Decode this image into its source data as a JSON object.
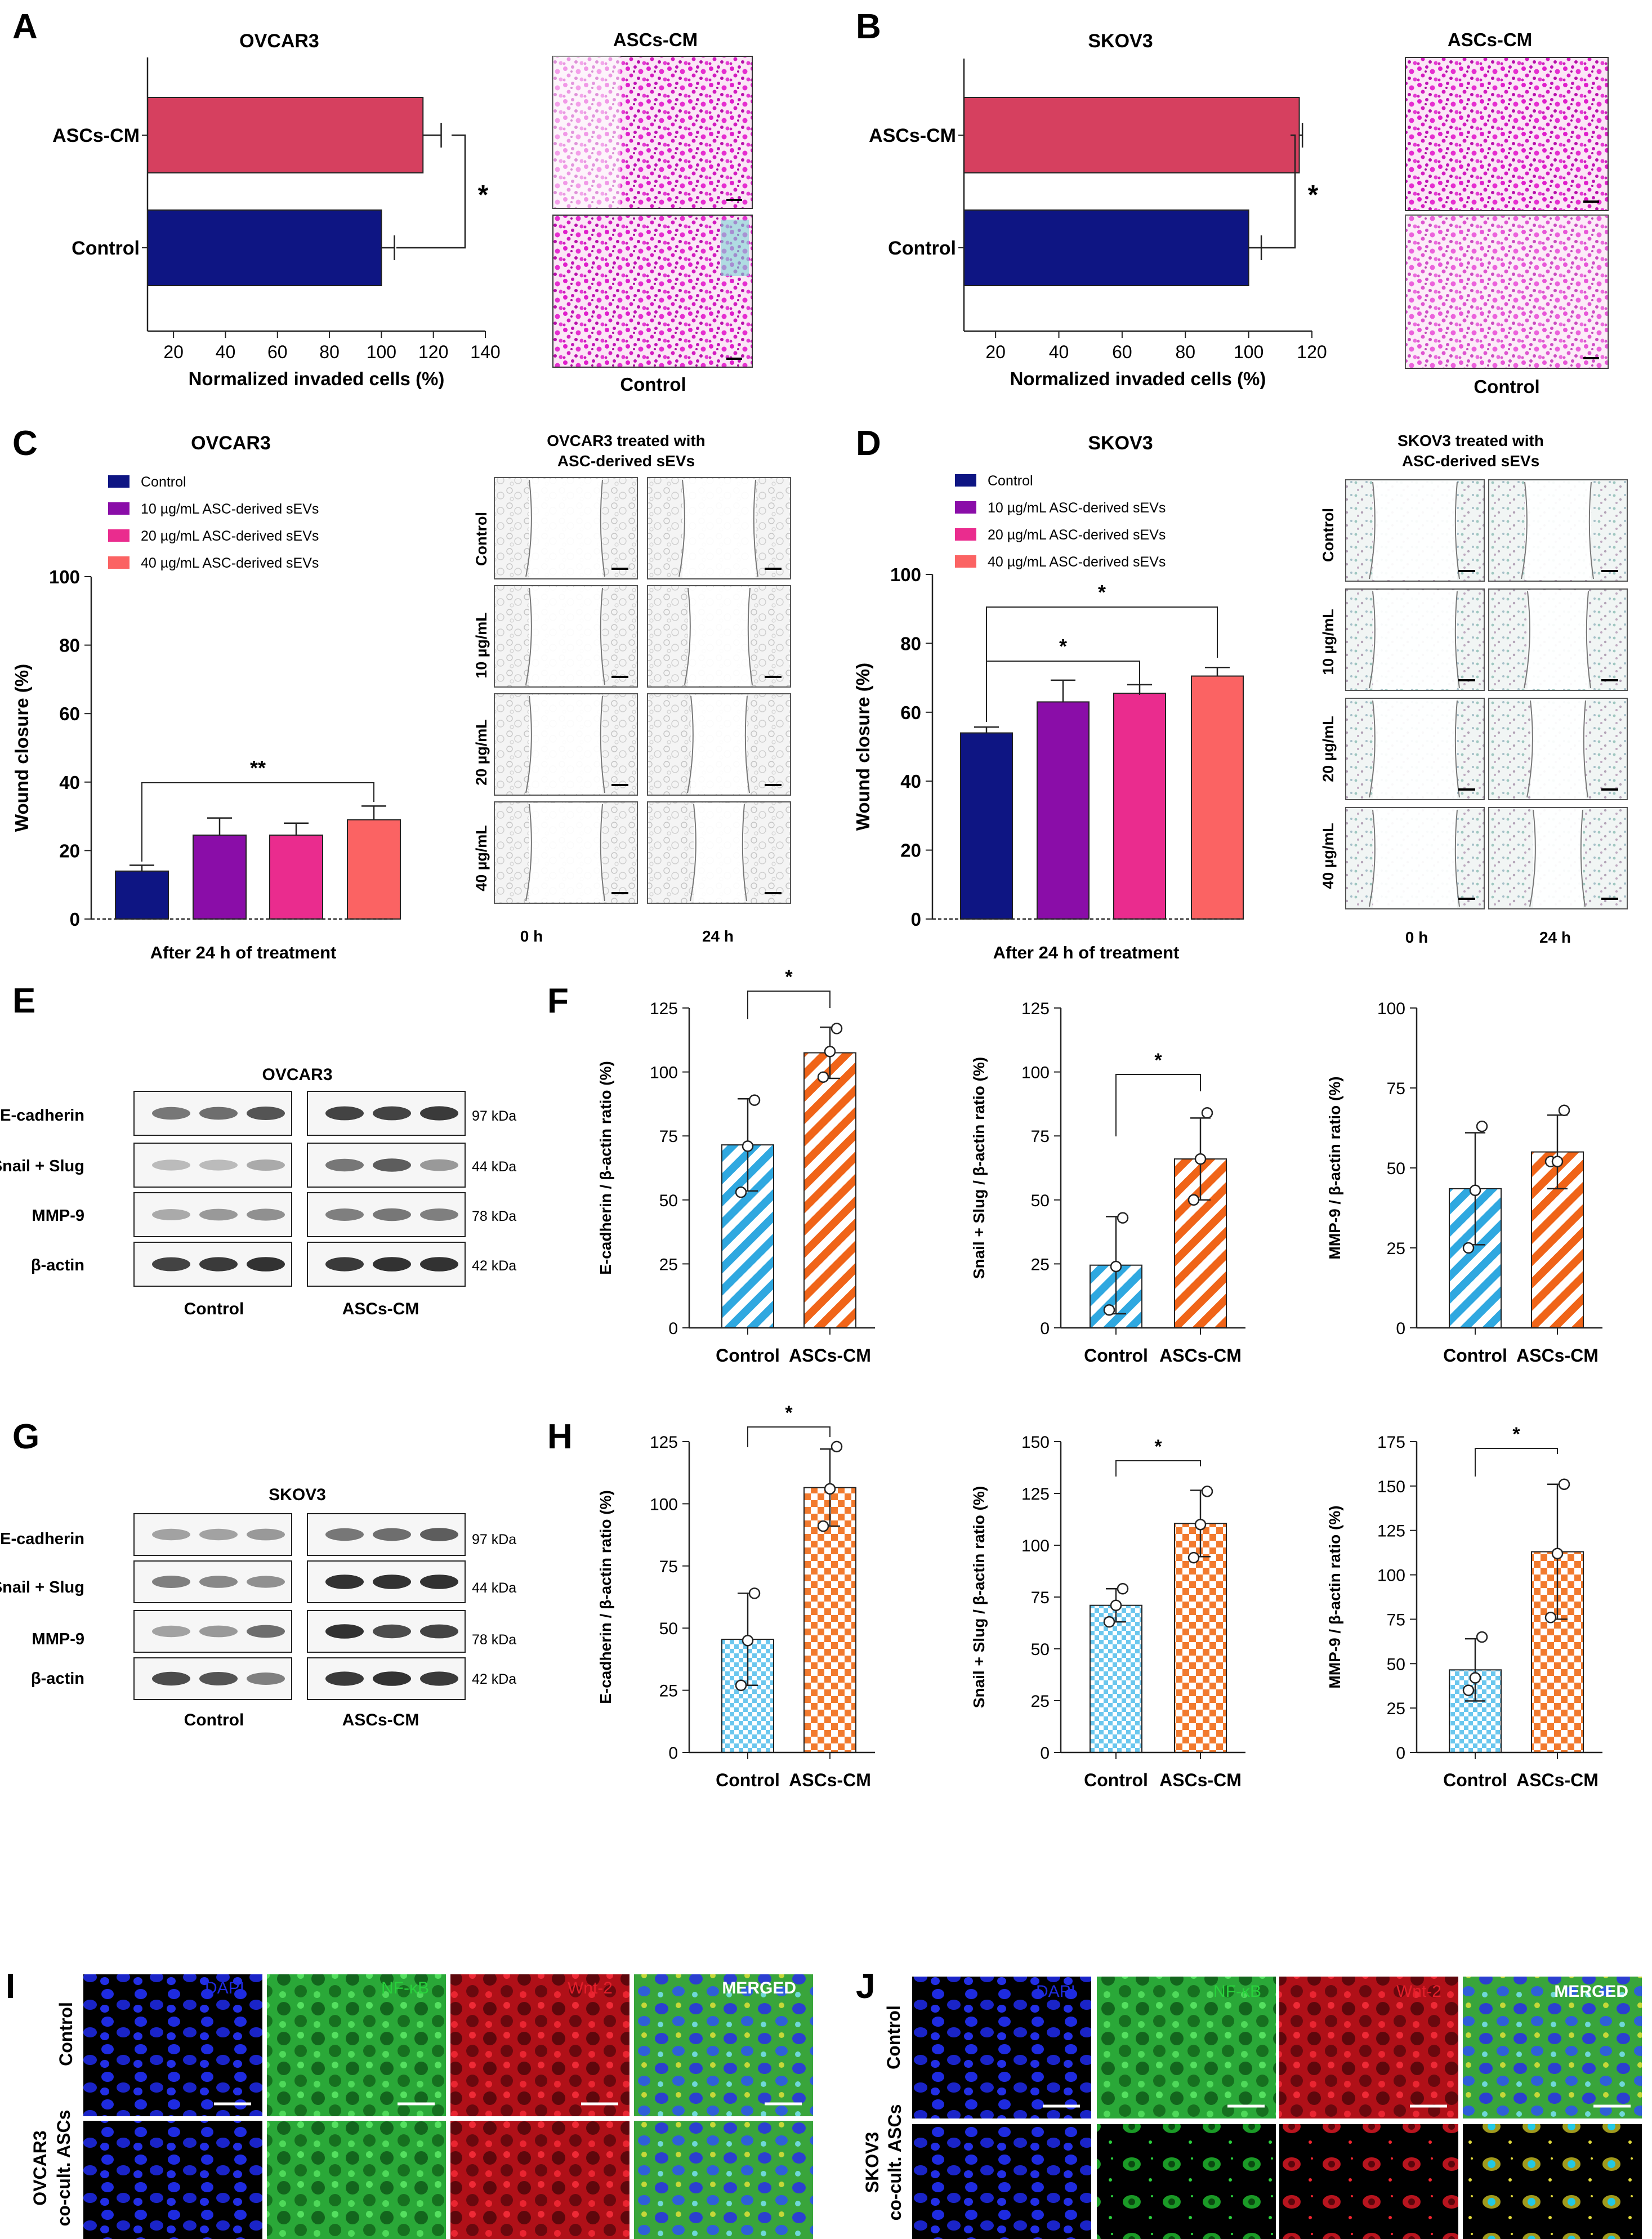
{
  "colors": {
    "control_navy": "#0E1583",
    "ascs_red": "#D6405F",
    "purple": "#8A0DA8",
    "pink": "#EA2C8E",
    "salmon": "#FB6363",
    "hatch_blue": "#2FA8E0",
    "hatch_orange": "#F06418",
    "checker_blue": "#6BC7EE",
    "checker_orange": "#F27A2E",
    "dapi": "#1E2BE0",
    "nfkb": "#28D23C",
    "wnt2": "#E51E2A"
  },
  "panels": {
    "A": "A",
    "B": "B",
    "C": "C",
    "D": "D",
    "E": "E",
    "F": "F",
    "G": "G",
    "H": "H",
    "I": "I",
    "J": "J"
  },
  "micro": {
    "A": {
      "title": "ASCs-CM",
      "bottom_label": "Control"
    },
    "B": {
      "title": "ASCs-CM",
      "bottom_label": "Control"
    },
    "C": {
      "title_line1": "OVCAR3 treated with",
      "title_line2": "ASC-derived sEVs",
      "rows": [
        "Control",
        "10 µg/mL",
        "20 µg/mL",
        "40 µg/mL"
      ],
      "cols": [
        "0 h",
        "24 h"
      ]
    },
    "D": {
      "title_line1": "SKOV3 treated with",
      "title_line2": "ASC-derived sEVs",
      "rows": [
        "Control",
        "10 µg/mL",
        "20 µg/mL",
        "40 µg/mL"
      ],
      "cols": [
        "0 h",
        "24 h"
      ]
    }
  },
  "blots": {
    "E": {
      "title": "OVCAR3",
      "rows": [
        "E-cadherin",
        "Snail + Slug",
        "MMP-9",
        "β-actin"
      ],
      "kda": [
        "97 kDa",
        "44 kDa",
        "78 kDa",
        "42 kDa"
      ],
      "groups": [
        "Control",
        "ASCs-CM"
      ]
    },
    "G": {
      "title": "SKOV3",
      "rows": [
        "E-cadherin",
        "Snail + Slug",
        "MMP-9",
        "β-actin"
      ],
      "kda": [
        "97 kDa",
        "44 kDa",
        "78 kDa",
        "42 kDa"
      ],
      "groups": [
        "Control",
        "ASCs-CM"
      ]
    }
  },
  "if": {
    "I": {
      "channels": [
        "DAPI",
        "NF-κB",
        "Wnt-2",
        "MERGED"
      ],
      "row1": "Control",
      "row2_line1": "OVCAR3",
      "row2_line2": "co-cult. ASCs"
    },
    "J": {
      "channels": [
        "DAPI",
        "NF-κB",
        "Wnt-2",
        "MERGED"
      ],
      "row1": "Control",
      "row2_line1": "SKOV3",
      "row2_line2": "co-cult. ASCs"
    }
  },
  "chart_data": [
    {
      "id": "A",
      "type": "bar",
      "orientation": "horizontal",
      "title": "OVCAR3",
      "categories": [
        "ASCs-CM",
        "Control"
      ],
      "values": [
        116,
        100
      ],
      "errors": [
        7,
        5
      ],
      "xlabel": "Normalized invaded cells (%)",
      "xlim": [
        10,
        140
      ],
      "xticks": [
        20,
        40,
        60,
        80,
        100,
        120,
        140
      ],
      "significance": "*"
    },
    {
      "id": "B",
      "type": "bar",
      "orientation": "horizontal",
      "title": "SKOV3",
      "categories": [
        "ASCs-CM",
        "Control"
      ],
      "values": [
        116,
        100
      ],
      "errors": [
        1,
        4
      ],
      "xlabel": "Normalized invaded cells (%)",
      "xlim": [
        10,
        120
      ],
      "xticks": [
        20,
        40,
        60,
        80,
        100,
        120
      ],
      "significance": "*"
    },
    {
      "id": "C",
      "type": "bar",
      "title": "OVCAR3",
      "categories": [
        "Control",
        "10 µg/mL ASC-derived sEVs",
        "20 µg/mL ASC-derived sEVs",
        "40 µg/mL ASC-derived sEVs"
      ],
      "values": [
        14,
        24.5,
        24.5,
        29
      ],
      "errors": [
        1.7,
        5,
        3.5,
        4
      ],
      "ylabel": "Wound closure (%)",
      "xlabel": "After 24 h of treatment",
      "ylim": [
        0,
        100
      ],
      "yticks": [
        0,
        20,
        40,
        60,
        80,
        100
      ],
      "legend": "top-left",
      "significance": [
        {
          "from": 0,
          "to": 3,
          "label": "**"
        }
      ]
    },
    {
      "id": "D",
      "type": "bar",
      "title": "SKOV3",
      "categories": [
        "Control",
        "10 µg/mL ASC-derived sEVs",
        "20 µg/mL ASC-derived sEVs",
        "40 µg/mL ASC-derived sEVs"
      ],
      "values": [
        54,
        63,
        65.5,
        70.5
      ],
      "errors": [
        1.7,
        6.3,
        2.5,
        2.5
      ],
      "ylabel": "Wound closure (%)",
      "xlabel": "After 24 h of treatment",
      "ylim": [
        0,
        100
      ],
      "yticks": [
        0,
        20,
        40,
        60,
        80,
        100
      ],
      "legend": "top-left",
      "significance": [
        {
          "from": 0,
          "to": 2,
          "label": "*"
        },
        {
          "from": 0,
          "to": 3,
          "label": "*"
        }
      ]
    },
    {
      "id": "F1",
      "type": "bar",
      "categories": [
        "Control",
        "ASCs-CM"
      ],
      "values": [
        71.5,
        107.5
      ],
      "errors": [
        18,
        10
      ],
      "points": [
        [
          53,
          71,
          89
        ],
        [
          98,
          108,
          117
        ]
      ],
      "ylabel": "E-cadherin / β-actin ratio (%)",
      "ylim": [
        0,
        125
      ],
      "yticks": [
        0,
        25,
        50,
        75,
        100,
        125
      ],
      "significance": "*"
    },
    {
      "id": "F2",
      "type": "bar",
      "categories": [
        "Control",
        "ASCs-CM"
      ],
      "values": [
        24.5,
        66
      ],
      "errors": [
        19,
        16
      ],
      "points": [
        [
          7,
          24,
          43
        ],
        [
          50,
          66,
          84
        ]
      ],
      "ylabel": "Snail + Slug / β-actin ratio (%)",
      "ylim": [
        0,
        125
      ],
      "yticks": [
        0,
        25,
        50,
        75,
        100,
        125
      ],
      "significance": "*"
    },
    {
      "id": "F3",
      "type": "bar",
      "categories": [
        "Control",
        "ASCs-CM"
      ],
      "values": [
        43.5,
        55
      ],
      "errors": [
        17.5,
        11.5
      ],
      "points": [
        [
          25,
          43,
          63
        ],
        [
          52,
          52,
          68
        ]
      ],
      "ylabel": "MMP-9 / β-actin ratio (%)",
      "ylim": [
        0,
        100
      ],
      "yticks": [
        0,
        25,
        50,
        75,
        100
      ],
      "significance": ""
    },
    {
      "id": "H1",
      "type": "bar",
      "categories": [
        "Control",
        "ASCs-CM"
      ],
      "values": [
        45.5,
        106.5
      ],
      "errors": [
        18.5,
        15.5
      ],
      "points": [
        [
          27,
          45,
          64
        ],
        [
          91,
          106,
          123
        ]
      ],
      "ylabel": "E-cadherin / β-actin ratio (%)",
      "ylim": [
        0,
        125
      ],
      "yticks": [
        0,
        25,
        50,
        75,
        100,
        125
      ],
      "significance": "*"
    },
    {
      "id": "H2",
      "type": "bar",
      "categories": [
        "Control",
        "ASCs-CM"
      ],
      "values": [
        71,
        110.5
      ],
      "errors": [
        8,
        16
      ],
      "points": [
        [
          63,
          71,
          79
        ],
        [
          94,
          110,
          126
        ]
      ],
      "ylabel": "Snail + Slug / β-actin ratio (%)",
      "ylim": [
        0,
        150
      ],
      "yticks": [
        0,
        25,
        50,
        75,
        100,
        125,
        150
      ],
      "significance": "*"
    },
    {
      "id": "H3",
      "type": "bar",
      "categories": [
        "Control",
        "ASCs-CM"
      ],
      "values": [
        46.5,
        113
      ],
      "errors": [
        17.5,
        38
      ],
      "points": [
        [
          35,
          42,
          65
        ],
        [
          76,
          112,
          151
        ]
      ],
      "ylabel": "MMP-9 / β-actin ratio (%)",
      "ylim": [
        0,
        175
      ],
      "yticks": [
        0,
        25,
        50,
        75,
        100,
        125,
        150,
        175
      ],
      "significance": "*"
    }
  ]
}
